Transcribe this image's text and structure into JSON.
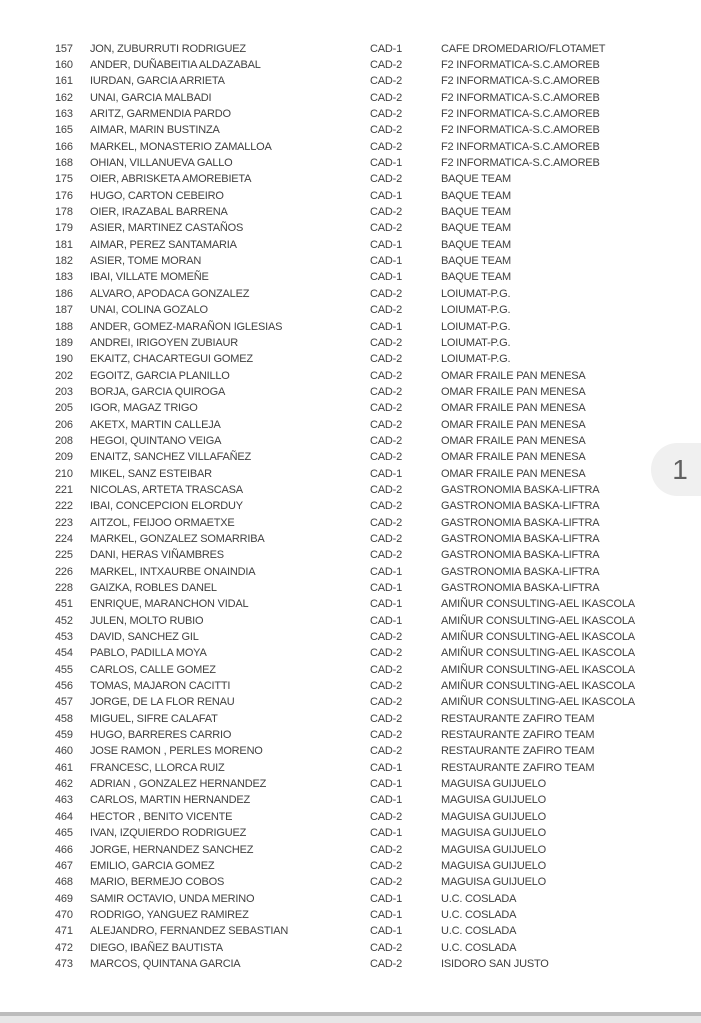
{
  "page_indicator": {
    "label": "1"
  },
  "colors": {
    "text": "#3f3f3f",
    "indicator-bg": "#f0f0f0",
    "indicator-text": "#606060",
    "page-edge-line": "#bcbcbc",
    "backdrop": "#e7e7e7"
  },
  "table": {
    "columns": [
      "number",
      "name",
      "category",
      "team"
    ],
    "rows": [
      {
        "num": "157",
        "name": "JON, ZUBURRUTI RODRIGUEZ",
        "cat": "CAD-1",
        "team": "CAFE DROMEDARIO/FLOTAMET"
      },
      {
        "num": "160",
        "name": "ANDER, DUÑABEITIA ALDAZABAL",
        "cat": "CAD-2",
        "team": "F2 INFORMATICA-S.C.AMOREB"
      },
      {
        "num": "161",
        "name": "IURDAN, GARCIA ARRIETA",
        "cat": "CAD-2",
        "team": "F2 INFORMATICA-S.C.AMOREB"
      },
      {
        "num": "162",
        "name": "UNAI, GARCIA MALBADI",
        "cat": "CAD-2",
        "team": "F2 INFORMATICA-S.C.AMOREB"
      },
      {
        "num": "163",
        "name": "ARITZ, GARMENDIA PARDO",
        "cat": "CAD-2",
        "team": "F2 INFORMATICA-S.C.AMOREB"
      },
      {
        "num": "165",
        "name": "AIMAR, MARIN BUSTINZA",
        "cat": "CAD-2",
        "team": "F2 INFORMATICA-S.C.AMOREB"
      },
      {
        "num": "166",
        "name": "MARKEL, MONASTERIO ZAMALLOA",
        "cat": "CAD-2",
        "team": "F2 INFORMATICA-S.C.AMOREB"
      },
      {
        "num": "168",
        "name": "OHIAN, VILLANUEVA GALLO",
        "cat": "CAD-1",
        "team": "F2 INFORMATICA-S.C.AMOREB"
      },
      {
        "num": "175",
        "name": "OIER, ABRISKETA AMOREBIETA",
        "cat": "CAD-2",
        "team": "BAQUE TEAM"
      },
      {
        "num": "176",
        "name": "HUGO, CARTON CEBEIRO",
        "cat": "CAD-1",
        "team": "BAQUE TEAM"
      },
      {
        "num": "178",
        "name": "OIER, IRAZABAL BARRENA",
        "cat": "CAD-2",
        "team": "BAQUE TEAM"
      },
      {
        "num": "179",
        "name": "ASIER, MARTINEZ CASTAÑOS",
        "cat": "CAD-2",
        "team": "BAQUE TEAM"
      },
      {
        "num": "181",
        "name": "AIMAR, PEREZ SANTAMARIA",
        "cat": "CAD-1",
        "team": "BAQUE TEAM"
      },
      {
        "num": "182",
        "name": "ASIER, TOME MORAN",
        "cat": "CAD-1",
        "team": "BAQUE TEAM"
      },
      {
        "num": "183",
        "name": "IBAI, VILLATE MOMEÑE",
        "cat": "CAD-1",
        "team": "BAQUE TEAM"
      },
      {
        "num": "186",
        "name": "ALVARO, APODACA GONZALEZ",
        "cat": "CAD-2",
        "team": "LOIUMAT-P.G."
      },
      {
        "num": "187",
        "name": "UNAI, COLINA GOZALO",
        "cat": "CAD-2",
        "team": "LOIUMAT-P.G."
      },
      {
        "num": "188",
        "name": "ANDER, GOMEZ-MARAÑON IGLESIAS",
        "cat": "CAD-1",
        "team": "LOIUMAT-P.G."
      },
      {
        "num": "189",
        "name": "ANDREI, IRIGOYEN ZUBIAUR",
        "cat": "CAD-2",
        "team": "LOIUMAT-P.G."
      },
      {
        "num": "190",
        "name": "EKAITZ, CHACARTEGUI GOMEZ",
        "cat": "CAD-2",
        "team": "LOIUMAT-P.G."
      },
      {
        "num": "202",
        "name": "EGOITZ, GARCIA PLANILLO",
        "cat": "CAD-2",
        "team": "OMAR FRAILE PAN MENESA"
      },
      {
        "num": "203",
        "name": "BORJA, GARCIA QUIROGA",
        "cat": "CAD-2",
        "team": "OMAR FRAILE PAN MENESA"
      },
      {
        "num": "205",
        "name": "IGOR, MAGAZ TRIGO",
        "cat": "CAD-2",
        "team": "OMAR FRAILE PAN MENESA"
      },
      {
        "num": "206",
        "name": "AKETX, MARTIN CALLEJA",
        "cat": "CAD-2",
        "team": "OMAR FRAILE PAN MENESA"
      },
      {
        "num": "208",
        "name": "HEGOI, QUINTANO VEIGA",
        "cat": "CAD-2",
        "team": "OMAR FRAILE PAN MENESA"
      },
      {
        "num": "209",
        "name": "ENAITZ, SANCHEZ VILLAFAÑEZ",
        "cat": "CAD-2",
        "team": "OMAR FRAILE PAN MENESA"
      },
      {
        "num": "210",
        "name": "MIKEL, SANZ ESTEIBAR",
        "cat": "CAD-1",
        "team": "OMAR FRAILE PAN MENESA"
      },
      {
        "num": "221",
        "name": "NICOLAS, ARTETA TRASCASA",
        "cat": "CAD-2",
        "team": "GASTRONOMIA BASKA-LIFTRA"
      },
      {
        "num": "222",
        "name": "IBAI, CONCEPCION ELORDUY",
        "cat": "CAD-2",
        "team": "GASTRONOMIA BASKA-LIFTRA"
      },
      {
        "num": "223",
        "name": "AITZOL, FEIJOO ORMAETXE",
        "cat": "CAD-2",
        "team": "GASTRONOMIA BASKA-LIFTRA"
      },
      {
        "num": "224",
        "name": "MARKEL, GONZALEZ SOMARRIBA",
        "cat": "CAD-2",
        "team": "GASTRONOMIA BASKA-LIFTRA"
      },
      {
        "num": "225",
        "name": "DANI, HERAS VIÑAMBRES",
        "cat": "CAD-2",
        "team": "GASTRONOMIA BASKA-LIFTRA"
      },
      {
        "num": "226",
        "name": "MARKEL, INTXAURBE ONAINDIA",
        "cat": "CAD-1",
        "team": "GASTRONOMIA BASKA-LIFTRA"
      },
      {
        "num": "228",
        "name": "GAIZKA, ROBLES DANEL",
        "cat": "CAD-1",
        "team": "GASTRONOMIA BASKA-LIFTRA"
      },
      {
        "num": "451",
        "name": "ENRIQUE, MARANCHON VIDAL",
        "cat": "CAD-1",
        "team": "AMIÑUR CONSULTING-AEL IKASCOLA"
      },
      {
        "num": "452",
        "name": "JULEN, MOLTO RUBIO",
        "cat": "CAD-1",
        "team": "AMIÑUR CONSULTING-AEL IKASCOLA"
      },
      {
        "num": "453",
        "name": "DAVID, SANCHEZ GIL",
        "cat": "CAD-2",
        "team": "AMIÑUR CONSULTING-AEL IKASCOLA"
      },
      {
        "num": "454",
        "name": "PABLO, PADILLA MOYA",
        "cat": "CAD-2",
        "team": "AMIÑUR CONSULTING-AEL IKASCOLA"
      },
      {
        "num": "455",
        "name": "CARLOS, CALLE GOMEZ",
        "cat": "CAD-2",
        "team": "AMIÑUR CONSULTING-AEL IKASCOLA"
      },
      {
        "num": "456",
        "name": "TOMAS, MAJARON CACITTI",
        "cat": "CAD-2",
        "team": "AMIÑUR CONSULTING-AEL IKASCOLA"
      },
      {
        "num": "457",
        "name": "JORGE, DE LA FLOR RENAU",
        "cat": "CAD-2",
        "team": "AMIÑUR CONSULTING-AEL IKASCOLA"
      },
      {
        "num": "458",
        "name": "MIGUEL, SIFRE CALAFAT",
        "cat": "CAD-2",
        "team": "RESTAURANTE ZAFIRO TEAM"
      },
      {
        "num": "459",
        "name": "HUGO, BARRERES CARRIO",
        "cat": "CAD-2",
        "team": "RESTAURANTE ZAFIRO TEAM"
      },
      {
        "num": "460",
        "name": "JOSE RAMON , PERLES MORENO",
        "cat": "CAD-2",
        "team": "RESTAURANTE ZAFIRO TEAM"
      },
      {
        "num": "461",
        "name": "FRANCESC, LLORCA RUIZ",
        "cat": "CAD-1",
        "team": "RESTAURANTE ZAFIRO TEAM"
      },
      {
        "num": "462",
        "name": "ADRIAN , GONZALEZ HERNANDEZ",
        "cat": "CAD-1",
        "team": "MAGUISA GUIJUELO"
      },
      {
        "num": "463",
        "name": "CARLOS, MARTIN HERNANDEZ",
        "cat": "CAD-1",
        "team": "MAGUISA GUIJUELO"
      },
      {
        "num": "464",
        "name": "HECTOR , BENITO VICENTE",
        "cat": "CAD-2",
        "team": "MAGUISA GUIJUELO"
      },
      {
        "num": "465",
        "name": "IVAN, IZQUIERDO RODRIGUEZ",
        "cat": "CAD-1",
        "team": "MAGUISA GUIJUELO"
      },
      {
        "num": "466",
        "name": "JORGE, HERNANDEZ SANCHEZ",
        "cat": "CAD-2",
        "team": "MAGUISA GUIJUELO"
      },
      {
        "num": "467",
        "name": "EMILIO, GARCIA GOMEZ",
        "cat": "CAD-2",
        "team": "MAGUISA GUIJUELO"
      },
      {
        "num": "468",
        "name": "MARIO, BERMEJO COBOS",
        "cat": "CAD-2",
        "team": "MAGUISA GUIJUELO"
      },
      {
        "num": "469",
        "name": "SAMIR OCTAVIO, UNDA MERINO",
        "cat": "CAD-1",
        "team": "U.C. COSLADA"
      },
      {
        "num": "470",
        "name": "RODRIGO, YANGUEZ RAMIREZ",
        "cat": "CAD-1",
        "team": "U.C. COSLADA"
      },
      {
        "num": "471",
        "name": "ALEJANDRO, FERNANDEZ SEBASTIAN",
        "cat": "CAD-1",
        "team": "U.C. COSLADA"
      },
      {
        "num": "472",
        "name": "DIEGO, IBAÑEZ BAUTISTA",
        "cat": "CAD-2",
        "team": "U.C. COSLADA"
      },
      {
        "num": "473",
        "name": "MARCOS, QUINTANA GARCIA",
        "cat": "CAD-2",
        "team": "ISIDORO SAN JUSTO"
      }
    ]
  }
}
